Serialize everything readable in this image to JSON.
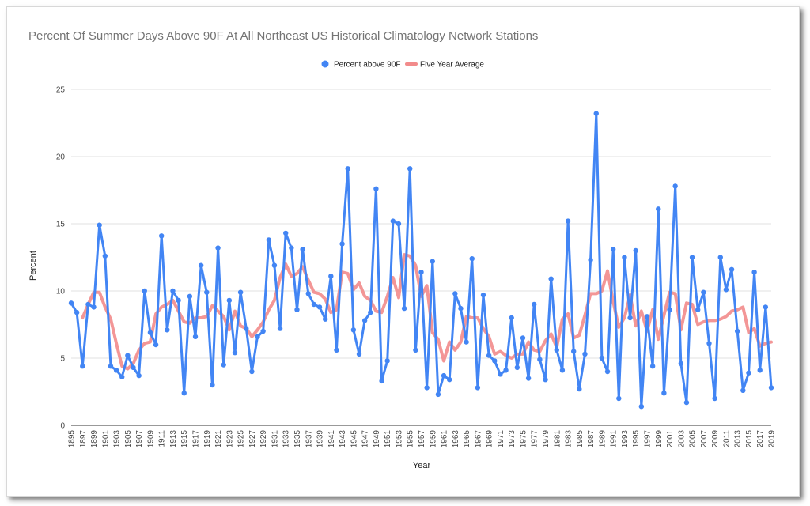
{
  "chart_data": {
    "type": "line",
    "title": "Percent Of Summer Days Above 90F At All Northeast US Historical Climatology Network Stations",
    "xlabel": "Year",
    "ylabel": "Percent",
    "ylim": [
      0,
      25
    ],
    "yticks": [
      0,
      5,
      10,
      15,
      20,
      25
    ],
    "xlim": [
      1895,
      2019
    ],
    "xtick_step": 2,
    "grid": true,
    "legend_position": "top",
    "series": [
      {
        "name": "Percent above 90F",
        "style": "line-markers",
        "color": "#4285f4",
        "x_start": 1895,
        "values": [
          9.1,
          8.4,
          4.4,
          9.0,
          8.8,
          14.9,
          12.6,
          4.4,
          4.1,
          3.6,
          5.2,
          4.3,
          3.7,
          10.0,
          6.9,
          6.0,
          14.1,
          7.1,
          10.0,
          9.3,
          2.4,
          9.6,
          6.6,
          11.9,
          9.9,
          3.0,
          13.2,
          4.5,
          9.3,
          5.4,
          9.9,
          7.2,
          4.0,
          6.6,
          7.0,
          13.8,
          11.9,
          7.2,
          14.3,
          13.2,
          8.6,
          13.1,
          9.8,
          9.0,
          8.8,
          7.9,
          11.1,
          5.6,
          13.5,
          19.1,
          7.1,
          5.3,
          7.8,
          8.4,
          17.6,
          3.3,
          4.8,
          15.2,
          15.0,
          8.7,
          19.1,
          5.6,
          11.4,
          2.8,
          12.2,
          2.3,
          3.7,
          3.4,
          9.8,
          8.7,
          6.2,
          12.4,
          2.8,
          9.7,
          5.2,
          4.8,
          3.8,
          4.1,
          8.0,
          4.3,
          6.5,
          3.5,
          9.0,
          4.9,
          3.4,
          10.9,
          5.6,
          4.1,
          15.2,
          5.5,
          2.7,
          5.3,
          12.3,
          23.2,
          5.0,
          4.0,
          13.1,
          2.0,
          12.5,
          8.0,
          13.0,
          1.4,
          8.1,
          4.4,
          16.1,
          2.4,
          8.6,
          17.8,
          4.6,
          1.7,
          12.5,
          8.6,
          9.9,
          6.1,
          2.0,
          12.5,
          10.1,
          11.6,
          7.0,
          2.6,
          3.9,
          11.4,
          4.1,
          8.8,
          2.8
        ]
      },
      {
        "name": "Five Year Average",
        "style": "line",
        "color": "#f28b8b",
        "x_start": 1897,
        "values": [
          8.0,
          9.0,
          9.9,
          9.9,
          8.8,
          7.9,
          6.1,
          4.4,
          4.2,
          4.6,
          5.6,
          6.1,
          6.2,
          8.3,
          8.8,
          9.0,
          9.3,
          8.5,
          7.7,
          7.6,
          8.0,
          8.0,
          8.1,
          8.9,
          8.5,
          8.1,
          7.1,
          8.5,
          7.4,
          7.2,
          6.6,
          7.1,
          7.7,
          8.6,
          9.3,
          11.0,
          12.0,
          11.1,
          11.3,
          11.8,
          10.8,
          9.9,
          9.8,
          9.4,
          8.4,
          8.6,
          11.4,
          11.3,
          10.1,
          10.6,
          9.6,
          9.3,
          8.5,
          8.4,
          9.6,
          11.0,
          9.5,
          12.7,
          12.6,
          11.9,
          9.6,
          10.4,
          6.9,
          6.4,
          4.8,
          6.2,
          5.6,
          6.2,
          8.1,
          8.0,
          8.0,
          7.2,
          6.6,
          5.3,
          5.5,
          5.2,
          5.0,
          5.3,
          5.3,
          6.2,
          5.6,
          5.5,
          6.3,
          6.8,
          5.8,
          7.9,
          8.3,
          6.5,
          6.7,
          8.2,
          9.8,
          9.8,
          10.0,
          11.5,
          9.2,
          7.3,
          8.0,
          9.7,
          7.4,
          8.5,
          7.0,
          8.6,
          6.4,
          8.2,
          9.9,
          9.8,
          7.1,
          9.1,
          9.0,
          7.5,
          7.7,
          7.8,
          7.8,
          7.9,
          8.1,
          8.5,
          8.6,
          8.8,
          6.9,
          7.2,
          5.9,
          6.1,
          6.2
        ]
      }
    ]
  }
}
